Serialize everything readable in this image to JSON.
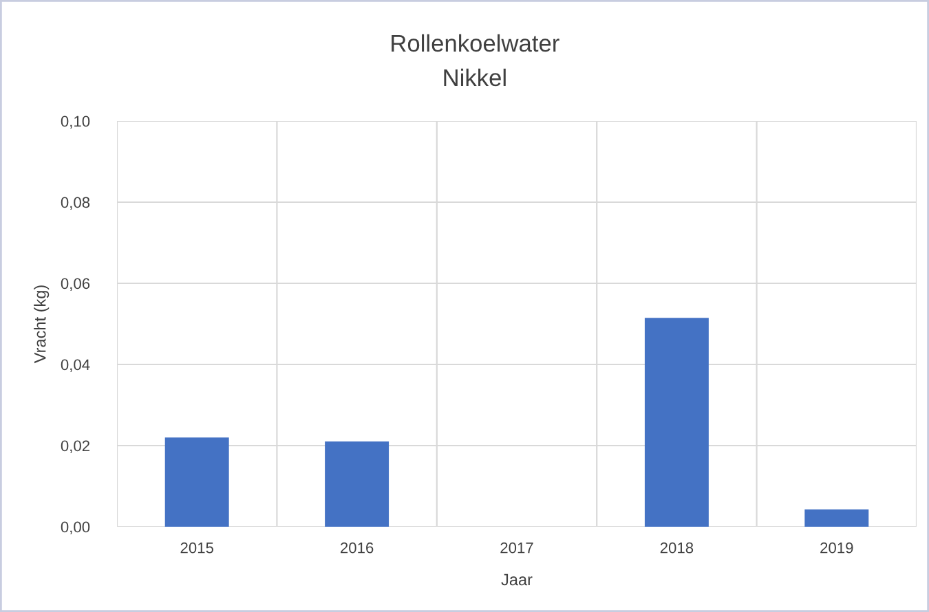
{
  "chart_data": {
    "type": "bar",
    "title": "Rollenkoelwater",
    "subtitle": "Nikkel",
    "xlabel": "Jaar",
    "ylabel": "Vracht (kg)",
    "categories": [
      "2015",
      "2016",
      "2017",
      "2018",
      "2019"
    ],
    "values": [
      0.022,
      0.021,
      null,
      0.0515,
      0.0043
    ],
    "color": "#4472c4",
    "ylim": [
      0,
      0.1
    ],
    "yticks": [
      {
        "value": 0,
        "label": "0,00"
      },
      {
        "value": 0.02,
        "label": "0,02"
      },
      {
        "value": 0.04,
        "label": "0,04"
      },
      {
        "value": 0.06,
        "label": "0,06"
      },
      {
        "value": 0.08,
        "label": "0,08"
      },
      {
        "value": 0.1,
        "label": "0,10"
      }
    ],
    "grid": true,
    "legend": false
  }
}
